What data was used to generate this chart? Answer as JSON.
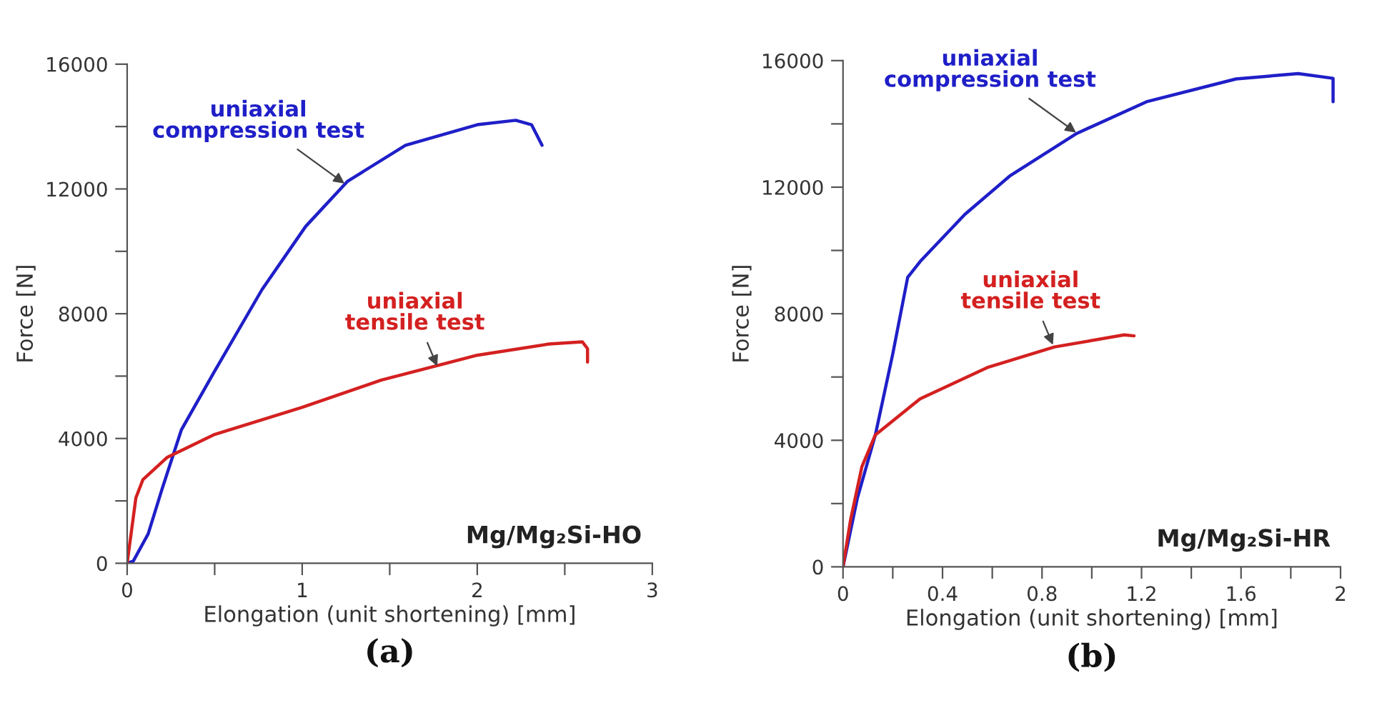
{
  "chart_data": [
    {
      "type": "line",
      "xlabel": "Elongation (unit shortening) [mm]",
      "ylabel": "Force [N]",
      "xlim": [
        0,
        3
      ],
      "ylim": [
        0,
        16000
      ],
      "xticks": [
        0,
        {
          "value": 0.5,
          "label": null
        },
        1,
        {
          "value": 1.5,
          "label": null
        },
        2,
        {
          "value": 2.5,
          "label": null
        },
        3
      ],
      "yticks": [
        0,
        {
          "value": 2000,
          "label": null
        },
        4000,
        {
          "value": 6000,
          "label": null
        },
        8000,
        {
          "value": 10000,
          "label": null
        },
        12000,
        {
          "value": 14000,
          "label": null
        },
        16000
      ],
      "series": [
        {
          "color": "#1f1fc8",
          "x": [
            0,
            0.035,
            0.12,
            0.2,
            0.31,
            0.5,
            0.77,
            1.02,
            1.26,
            1.59,
            2.0,
            2.22,
            2.31,
            2.37
          ],
          "values": [
            0,
            70,
            940,
            2390,
            4280,
            6160,
            8770,
            10800,
            12250,
            13400,
            14060,
            14200,
            14060,
            13400
          ]
        },
        {
          "color": "#d42020",
          "x": [
            0,
            0.05,
            0.09,
            0.23,
            0.5,
            1.0,
            1.45,
            2.0,
            2.41,
            2.6,
            2.63,
            2.63
          ],
          "values": [
            0,
            2100,
            2680,
            3400,
            4130,
            5000,
            5870,
            6670,
            7030,
            7100,
            6880,
            6450
          ]
        }
      ],
      "annotations": [
        {
          "text": "uniaxial\ncompression test",
          "x": 1.26,
          "y": 12100
        },
        {
          "text": "uniaxial\ntensile test",
          "x": 1.78,
          "y": 6200
        },
        "Mg/Mg₂Si-HO",
        "(a)"
      ]
    },
    {
      "type": "line",
      "xlabel": "Elongation (unit shortening) [mm]",
      "ylabel": "Force [N]",
      "xlim": [
        0,
        2
      ],
      "ylim": [
        0,
        16000
      ],
      "xticks": [
        0,
        {
          "value": 0.2,
          "label": null
        },
        0.4,
        {
          "value": 0.6,
          "label": null
        },
        0.8,
        {
          "value": 1.0,
          "label": null
        },
        1.2,
        {
          "value": 1.4,
          "label": null
        },
        1.6,
        {
          "value": 1.8,
          "label": null
        },
        2
      ],
      "yticks": [
        0,
        {
          "value": 2000,
          "label": null
        },
        4000,
        {
          "value": 6000,
          "label": null
        },
        8000,
        {
          "value": 10000,
          "label": null
        },
        12000,
        {
          "value": 14000,
          "label": null
        },
        16000
      ],
      "series": [
        {
          "color": "#1f1fc8",
          "x": [
            0,
            0.058,
            0.13,
            0.2,
            0.26,
            0.31,
            0.49,
            0.67,
            0.94,
            1.22,
            1.58,
            1.83,
            1.97,
            1.97
          ],
          "values": [
            0,
            2180,
            4170,
            6730,
            9150,
            9650,
            11140,
            12350,
            13700,
            14700,
            15420,
            15590,
            15440,
            14700
          ]
        },
        {
          "color": "#d42020",
          "x": [
            0,
            0.03,
            0.076,
            0.13,
            0.31,
            0.58,
            0.85,
            1.13,
            1.17
          ],
          "values": [
            0,
            1470,
            3170,
            4170,
            5310,
            6300,
            6950,
            7330,
            7300
          ]
        }
      ],
      "annotations": [
        {
          "text": "uniaxial\ncompression test",
          "x": 0.95,
          "y": 13650
        },
        {
          "text": "uniaxial\ntensile test",
          "x": 0.85,
          "y": 6900
        },
        "Mg/Mg₂Si-HR",
        "(b)"
      ]
    }
  ]
}
